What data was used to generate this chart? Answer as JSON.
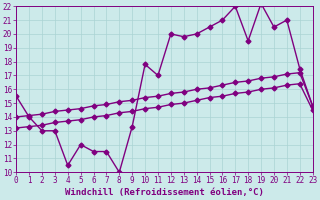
{
  "xlabel": "Windchill (Refroidissement éolien,°C)",
  "background_color": "#cceaea",
  "grid_color": "#aad4d4",
  "line_color": "#800080",
  "x_min": 0,
  "x_max": 23,
  "y_min": 10,
  "y_max": 22,
  "x_ticks": [
    0,
    1,
    2,
    3,
    4,
    5,
    6,
    7,
    8,
    9,
    10,
    11,
    12,
    13,
    14,
    15,
    16,
    17,
    18,
    19,
    20,
    21,
    22,
    23
  ],
  "y_ticks": [
    10,
    11,
    12,
    13,
    14,
    15,
    16,
    17,
    18,
    19,
    20,
    21,
    22
  ],
  "line1_x": [
    0,
    1,
    2,
    3,
    4,
    5,
    6,
    7,
    8,
    9,
    10,
    11,
    12,
    13,
    14,
    15,
    16,
    17,
    18,
    19,
    20,
    21,
    22,
    23
  ],
  "line1_y": [
    15.5,
    14.0,
    13.0,
    13.0,
    10.5,
    12.0,
    11.5,
    11.5,
    10.0,
    13.3,
    17.8,
    17.0,
    20.0,
    19.8,
    20.0,
    20.5,
    21.0,
    22.0,
    19.5,
    22.2,
    20.5,
    21.0,
    17.5,
    14.8
  ],
  "line2_x": [
    0,
    1,
    2,
    3,
    4,
    5,
    6,
    7,
    8,
    9,
    10,
    11,
    12,
    13,
    14,
    15,
    16,
    17,
    18,
    19,
    20,
    21,
    22,
    23
  ],
  "line2_y": [
    14.0,
    14.1,
    14.2,
    14.4,
    14.5,
    14.6,
    14.8,
    14.9,
    15.1,
    15.2,
    15.4,
    15.5,
    15.7,
    15.8,
    16.0,
    16.1,
    16.3,
    16.5,
    16.6,
    16.8,
    16.9,
    17.1,
    17.2,
    14.8
  ],
  "line3_x": [
    0,
    1,
    2,
    3,
    4,
    5,
    6,
    7,
    8,
    9,
    10,
    11,
    12,
    13,
    14,
    15,
    16,
    17,
    18,
    19,
    20,
    21,
    22,
    23
  ],
  "line3_y": [
    13.2,
    13.3,
    13.4,
    13.6,
    13.7,
    13.8,
    14.0,
    14.1,
    14.3,
    14.4,
    14.6,
    14.7,
    14.9,
    15.0,
    15.2,
    15.4,
    15.5,
    15.7,
    15.8,
    16.0,
    16.1,
    16.3,
    16.4,
    14.5
  ],
  "marker": "D",
  "markersize": 2.5,
  "linewidth": 1.0,
  "tick_fontsize": 5.5,
  "xlabel_fontsize": 6.5
}
